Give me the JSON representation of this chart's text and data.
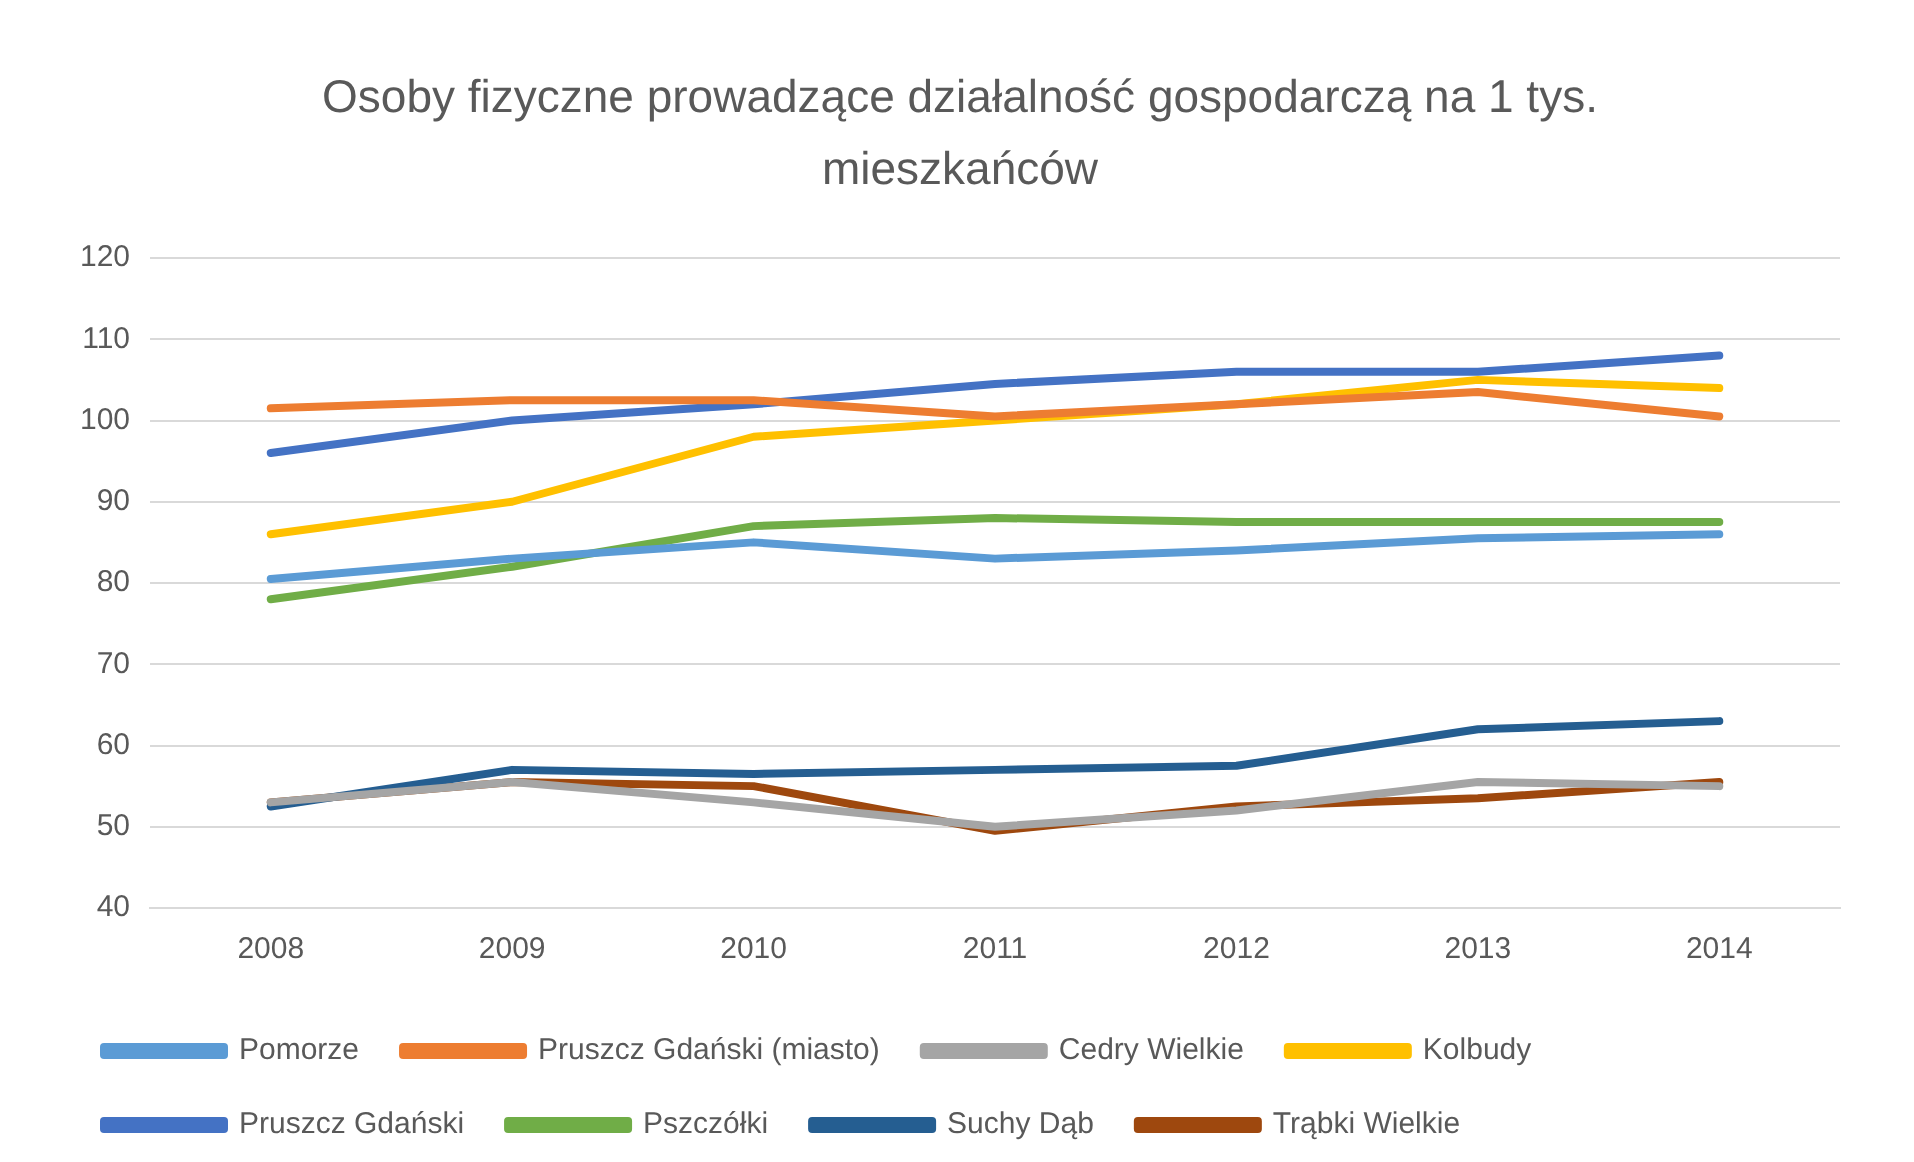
{
  "chart_data": {
    "type": "line",
    "title": "Osoby fizyczne prowadzące działalność gospodarczą na 1 tys. mieszkańców",
    "categories": [
      "2008",
      "2009",
      "2010",
      "2011",
      "2012",
      "2013",
      "2014"
    ],
    "series": [
      {
        "name": "Pomorze",
        "color": "#5b9bd5",
        "values": [
          80.5,
          83,
          85,
          83,
          84,
          85.5,
          86
        ]
      },
      {
        "name": "Pruszcz Gdański (miasto)",
        "color": "#ed7d31",
        "values": [
          101.5,
          102.5,
          102.5,
          100.5,
          102,
          103.5,
          100.5
        ]
      },
      {
        "name": "Cedry Wielkie",
        "color": "#a5a5a5",
        "values": [
          53,
          55.5,
          53,
          50,
          52,
          55.5,
          55
        ]
      },
      {
        "name": "Kolbudy",
        "color": "#ffc000",
        "values": [
          86,
          90,
          98,
          100,
          102,
          105,
          104
        ]
      },
      {
        "name": "Pruszcz Gdański",
        "color": "#4472c4",
        "values": [
          96,
          100,
          102,
          104.5,
          106,
          106,
          108
        ]
      },
      {
        "name": "Pszczółki",
        "color": "#70ad47",
        "values": [
          78,
          82,
          87,
          88,
          87.5,
          87.5,
          87.5
        ]
      },
      {
        "name": "Suchy Dąb",
        "color": "#255e91",
        "values": [
          52.5,
          57,
          56.5,
          57,
          57.5,
          62,
          63
        ]
      },
      {
        "name": "Trąbki Wielkie",
        "color": "#9e480e",
        "values": [
          53,
          55.5,
          55,
          49.5,
          52.5,
          53.5,
          55.5
        ]
      }
    ],
    "ylim": [
      40,
      120
    ],
    "yticks": [
      40,
      50,
      60,
      70,
      80,
      90,
      100,
      110,
      120
    ],
    "grid": "y",
    "legend": "bottom",
    "marker": "none"
  }
}
